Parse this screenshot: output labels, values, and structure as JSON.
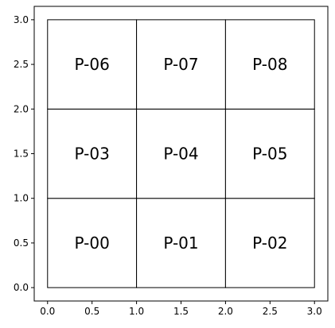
{
  "chart_data": {
    "type": "heatmap",
    "title": "",
    "xlabel": "",
    "ylabel": "",
    "xlim": [
      -0.15,
      3.15
    ],
    "ylim": [
      -0.15,
      3.15
    ],
    "grid": false,
    "x_ticks": [
      0.0,
      0.5,
      1.0,
      1.5,
      2.0,
      2.5,
      3.0
    ],
    "y_ticks": [
      0.0,
      0.5,
      1.0,
      1.5,
      2.0,
      2.5,
      3.0
    ],
    "x_tick_labels": [
      "0.0",
      "0.5",
      "1.0",
      "1.5",
      "2.0",
      "2.5",
      "3.0"
    ],
    "y_tick_labels": [
      "0.0",
      "0.5",
      "1.0",
      "1.5",
      "2.0",
      "2.5",
      "3.0"
    ],
    "cells": [
      {
        "label": "P-00",
        "x0": 0,
        "y0": 0,
        "x1": 1,
        "y1": 1
      },
      {
        "label": "P-01",
        "x0": 1,
        "y0": 0,
        "x1": 2,
        "y1": 1
      },
      {
        "label": "P-02",
        "x0": 2,
        "y0": 0,
        "x1": 3,
        "y1": 1
      },
      {
        "label": "P-03",
        "x0": 0,
        "y0": 1,
        "x1": 1,
        "y1": 2
      },
      {
        "label": "P-04",
        "x0": 1,
        "y0": 1,
        "x1": 2,
        "y1": 2
      },
      {
        "label": "P-05",
        "x0": 2,
        "y0": 1,
        "x1": 3,
        "y1": 2
      },
      {
        "label": "P-06",
        "x0": 0,
        "y0": 2,
        "x1": 1,
        "y1": 3
      },
      {
        "label": "P-07",
        "x0": 1,
        "y0": 2,
        "x1": 2,
        "y1": 3
      },
      {
        "label": "P-08",
        "x0": 2,
        "y0": 2,
        "x1": 3,
        "y1": 3
      }
    ],
    "colors": {
      "cell_fill": "#ffffff",
      "cell_edge": "#000000",
      "axes_edge": "#000000",
      "background": "#ffffff"
    }
  }
}
